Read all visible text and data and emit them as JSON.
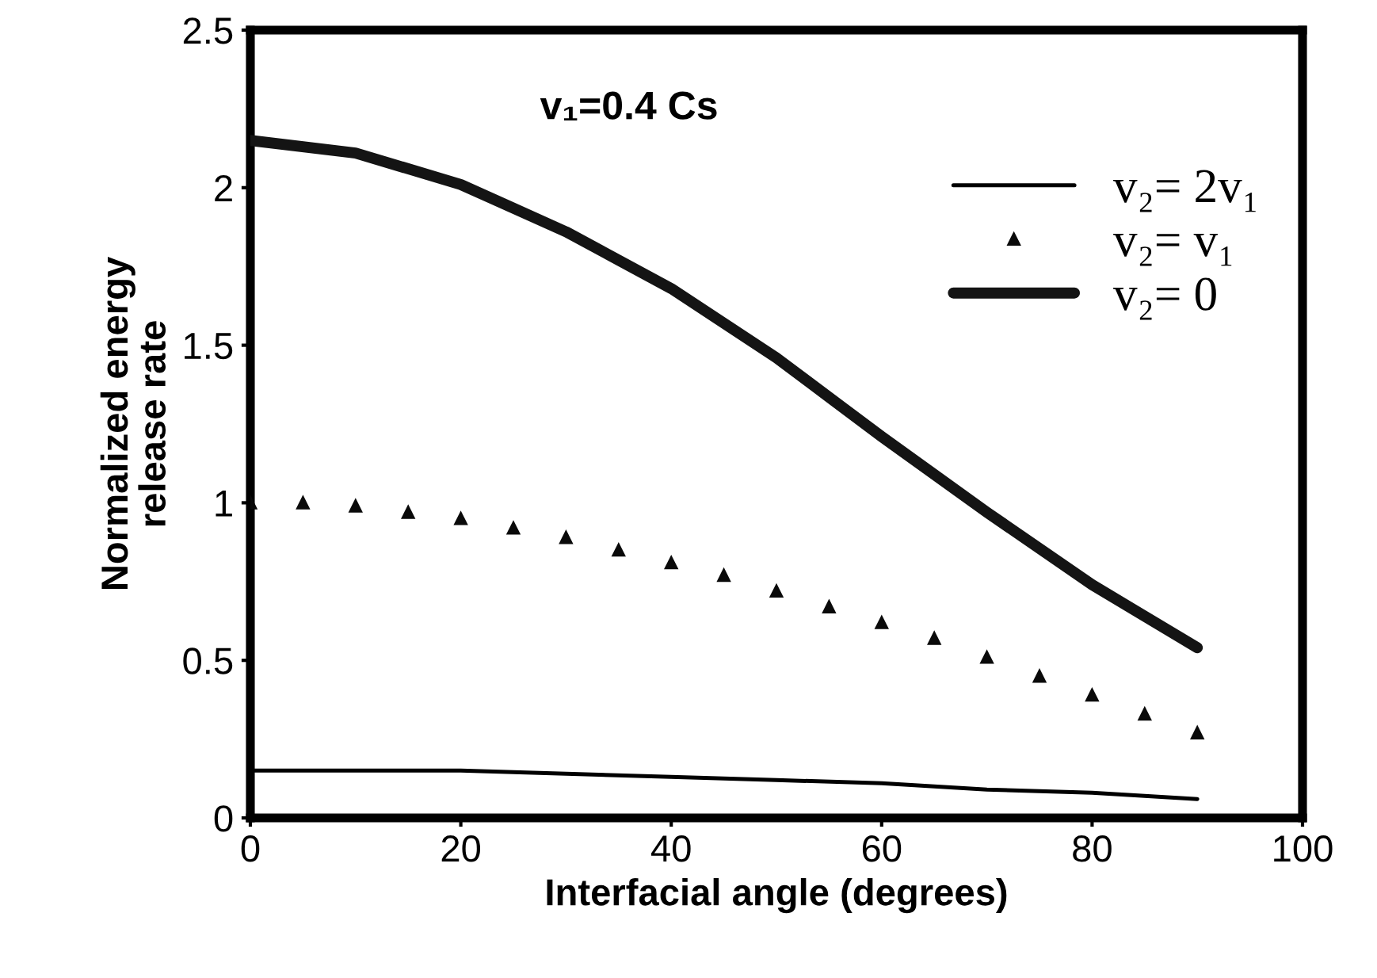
{
  "chart_data": {
    "type": "line",
    "xlabel": "Interfacial angle (degrees)",
    "ylabel": "Normalized energy\nrelease rate",
    "annotations": [
      "v₁=0.4 Cs"
    ],
    "xlim": [
      0,
      100
    ],
    "xticks": [
      0,
      20,
      40,
      60,
      80,
      100
    ],
    "ylim": [
      0,
      2.5
    ],
    "yticks": [
      0,
      0.5,
      1,
      1.5,
      2,
      2.5
    ],
    "grid": false,
    "legend": "top right",
    "series": [
      {
        "name": "v₂= 2v₁",
        "color": "#000000",
        "marker": "none",
        "x": [
          0,
          10,
          20,
          30,
          40,
          50,
          60,
          70,
          80,
          90
        ],
        "values": [
          0.15,
          0.15,
          0.15,
          0.14,
          0.13,
          0.12,
          0.11,
          0.09,
          0.08,
          0.06
        ]
      },
      {
        "name": "v₂= v₁",
        "type": "scatter",
        "color": "#0a0a0a",
        "marker": "triangle",
        "x": [
          0,
          5,
          10,
          15,
          20,
          25,
          30,
          35,
          40,
          45,
          50,
          55,
          60,
          65,
          70,
          75,
          80,
          85,
          90
        ],
        "values": [
          1.0,
          1.0,
          0.99,
          0.97,
          0.95,
          0.92,
          0.89,
          0.85,
          0.81,
          0.77,
          0.72,
          0.67,
          0.62,
          0.57,
          0.51,
          0.45,
          0.39,
          0.33,
          0.27
        ]
      },
      {
        "name": "v₂= 0",
        "color": "#141414",
        "marker": "none",
        "x": [
          0,
          10,
          20,
          30,
          40,
          50,
          60,
          70,
          80,
          90
        ],
        "values": [
          2.15,
          2.11,
          2.01,
          1.86,
          1.68,
          1.46,
          1.21,
          0.97,
          0.74,
          0.54
        ]
      }
    ]
  }
}
